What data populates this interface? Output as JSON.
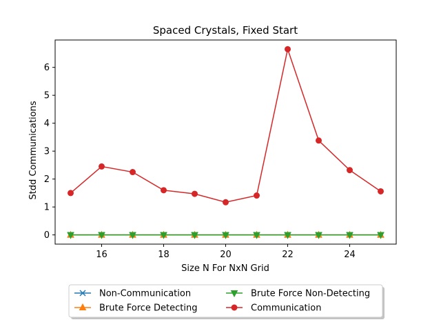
{
  "chart_data": {
    "type": "line",
    "title": "Spaced Crystals, Fixed Start",
    "xlabel": "Size N For NxN Grid",
    "ylabel": "Stdd Communications",
    "x": [
      15,
      16,
      17,
      18,
      19,
      20,
      21,
      22,
      23,
      24,
      25
    ],
    "xlim": [
      14.5,
      25.5
    ],
    "ylim": [
      -0.33,
      6.98
    ],
    "xticks": [
      16,
      18,
      20,
      22,
      24
    ],
    "yticks": [
      0,
      1,
      2,
      3,
      4,
      5,
      6
    ],
    "grid": false,
    "legend_position": "bottom-center, below the plot",
    "series": [
      {
        "name": "Non-Communication",
        "color": "#1f77b4",
        "marker": "x",
        "values": [
          0,
          0,
          0,
          0,
          0,
          0,
          0,
          0,
          0,
          0,
          0
        ]
      },
      {
        "name": "Brute Force Detecting",
        "color": "#ff7f0e",
        "marker": "triangle-up",
        "values": [
          0,
          0,
          0,
          0,
          0,
          0,
          0,
          0,
          0,
          0,
          0
        ]
      },
      {
        "name": "Brute Force Non-Detecting",
        "color": "#2ca02c",
        "marker": "triangle-down",
        "values": [
          0,
          0,
          0,
          0,
          0,
          0,
          0,
          0,
          0,
          0,
          0
        ]
      },
      {
        "name": "Communication",
        "color": "#d62728",
        "marker": "circle",
        "values": [
          1.5,
          2.45,
          2.25,
          1.6,
          1.47,
          1.17,
          1.41,
          6.65,
          3.38,
          2.32,
          1.56
        ]
      }
    ]
  }
}
